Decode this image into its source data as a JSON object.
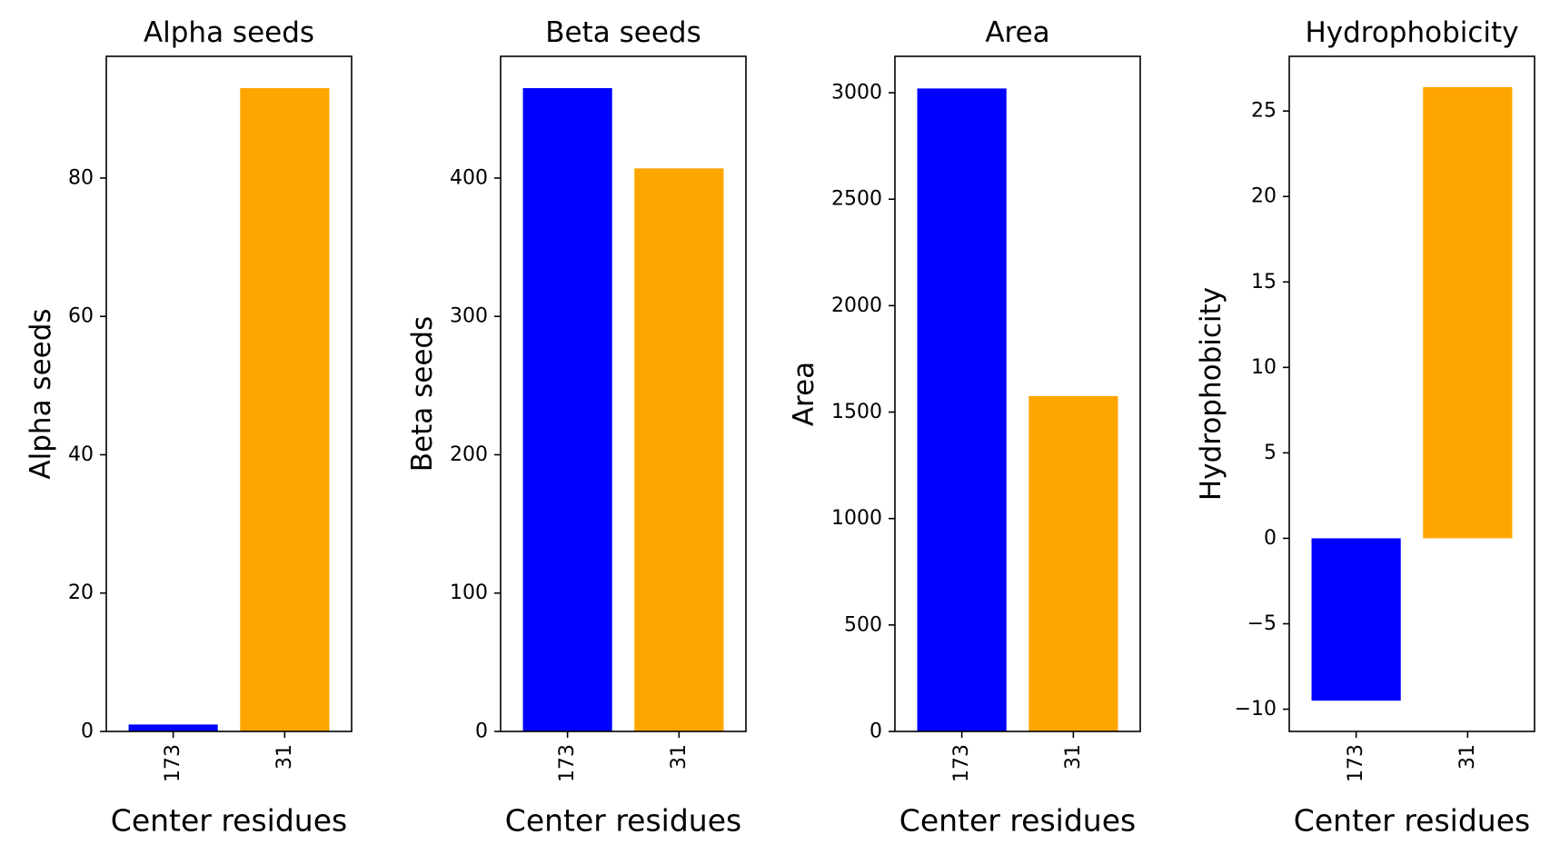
{
  "chart_data": [
    {
      "type": "bar",
      "title": "Alpha seeds",
      "xlabel": "Center residues",
      "ylabel": "Alpha seeds",
      "categories": [
        "173",
        "31"
      ],
      "values": [
        1,
        93
      ],
      "colors": [
        "#0000ff",
        "#ffa500"
      ],
      "ylim": [
        0,
        97.6
      ],
      "yticks": [
        0,
        20,
        40,
        60,
        80
      ],
      "grid": false,
      "xtick_rotation": 90
    },
    {
      "type": "bar",
      "title": "Beta seeds",
      "xlabel": "Center residues",
      "ylabel": "Beta seeds",
      "categories": [
        "173",
        "31"
      ],
      "values": [
        465,
        407
      ],
      "colors": [
        "#0000ff",
        "#ffa500"
      ],
      "ylim": [
        0,
        488
      ],
      "yticks": [
        0,
        100,
        200,
        300,
        400
      ],
      "grid": false,
      "xtick_rotation": 90
    },
    {
      "type": "bar",
      "title": "Area",
      "xlabel": "Center residues",
      "ylabel": "Area",
      "categories": [
        "173",
        "31"
      ],
      "values": [
        3020,
        1575
      ],
      "colors": [
        "#0000ff",
        "#ffa500"
      ],
      "ylim": [
        0,
        3171
      ],
      "yticks": [
        0,
        500,
        1000,
        1500,
        2000,
        2500,
        3000
      ],
      "grid": false,
      "xtick_rotation": 90
    },
    {
      "type": "bar",
      "title": "Hydrophobicity",
      "xlabel": "Center residues",
      "ylabel": "Hydrophobicity",
      "categories": [
        "173",
        "31"
      ],
      "values": [
        -9.5,
        26.4
      ],
      "colors": [
        "#0000ff",
        "#ffa500"
      ],
      "ylim": [
        -11.3,
        28.2
      ],
      "yticks": [
        -10,
        -5,
        0,
        5,
        10,
        15,
        20,
        25
      ],
      "grid": false,
      "xtick_rotation": 90
    }
  ]
}
